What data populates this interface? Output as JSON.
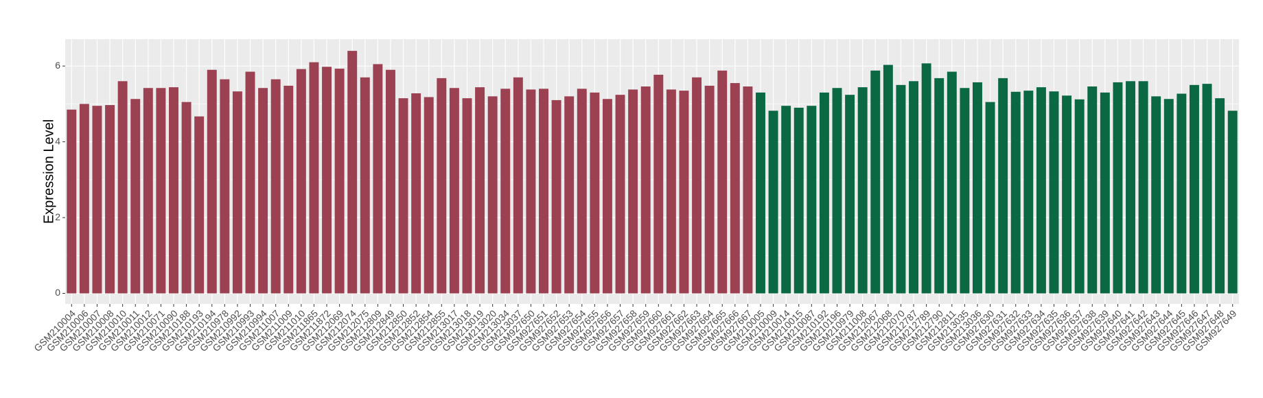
{
  "chart_data": {
    "type": "bar",
    "y_label": "Expression Level",
    "ylim": [
      -0.28,
      6.71
    ],
    "yticks": [
      0,
      2,
      4,
      6
    ],
    "grid": true,
    "series": [
      {
        "color": "#9b4151",
        "categories": [
          "GSM210004",
          "GSM210006",
          "GSM210007",
          "GSM210008",
          "GSM210010",
          "GSM210011",
          "GSM210012",
          "GSM210071",
          "GSM210090",
          "GSM210188",
          "GSM210193",
          "GSM210194",
          "GSM210978",
          "GSM210992",
          "GSM210993",
          "GSM210994",
          "GSM211007",
          "GSM211009",
          "GSM211010",
          "GSM211865",
          "GSM211872",
          "GSM212069",
          "GSM212074",
          "GSM212075",
          "GSM212809",
          "GSM212849",
          "GSM212850",
          "GSM212852",
          "GSM212854",
          "GSM212855",
          "GSM213017",
          "GSM213018",
          "GSM213019",
          "GSM213020",
          "GSM213034",
          "GSM213037",
          "GSM927650",
          "GSM927651",
          "GSM927652",
          "GSM927653",
          "GSM927654",
          "GSM927655",
          "GSM927656",
          "GSM927657",
          "GSM927658",
          "GSM927659",
          "GSM927660",
          "GSM927661",
          "GSM927662",
          "GSM927663",
          "GSM927664",
          "GSM927665",
          "GSM927666",
          "GSM927667"
        ],
        "values": [
          4.85,
          5.0,
          4.95,
          4.97,
          5.6,
          5.13,
          5.42,
          5.42,
          5.44,
          5.05,
          4.67,
          5.9,
          5.65,
          5.33,
          5.85,
          5.42,
          5.65,
          5.48,
          5.92,
          6.1,
          5.98,
          5.93,
          6.4,
          5.7,
          6.05,
          5.9,
          5.15,
          5.28,
          5.18,
          5.68,
          5.42,
          5.15,
          5.44,
          5.2,
          5.4,
          5.7,
          5.38,
          5.4,
          5.1,
          5.2,
          5.4,
          5.3,
          5.13,
          5.24,
          5.38,
          5.46,
          5.77,
          5.38,
          5.35,
          5.7,
          5.48,
          5.88,
          5.55,
          5.46
        ]
      },
      {
        "color": "#0a6843",
        "categories": [
          "GSM210005",
          "GSM210009",
          "GSM210014",
          "GSM210015",
          "GSM210087",
          "GSM210192",
          "GSM210196",
          "GSM210979",
          "GSM211008",
          "GSM212067",
          "GSM212068",
          "GSM212070",
          "GSM212787",
          "GSM212789",
          "GSM212790",
          "GSM212811",
          "GSM213035",
          "GSM213036",
          "GSM927630",
          "GSM927631",
          "GSM927632",
          "GSM927633",
          "GSM927634",
          "GSM927635",
          "GSM927636",
          "GSM927637",
          "GSM927638",
          "GSM927639",
          "GSM927640",
          "GSM927641",
          "GSM927642",
          "GSM927643",
          "GSM927644",
          "GSM927645",
          "GSM927646",
          "GSM927647",
          "GSM927648",
          "GSM927649"
        ],
        "values": [
          5.3,
          4.82,
          4.95,
          4.9,
          4.95,
          5.3,
          5.42,
          5.24,
          5.44,
          5.88,
          6.03,
          5.5,
          5.6,
          6.07,
          5.68,
          5.85,
          5.42,
          5.57,
          5.05,
          5.68,
          5.32,
          5.35,
          5.44,
          5.33,
          5.22,
          5.12,
          5.46,
          5.3,
          5.57,
          5.6,
          5.6,
          5.2,
          5.13,
          5.27,
          5.5,
          5.53,
          5.15,
          4.82
        ]
      }
    ]
  }
}
